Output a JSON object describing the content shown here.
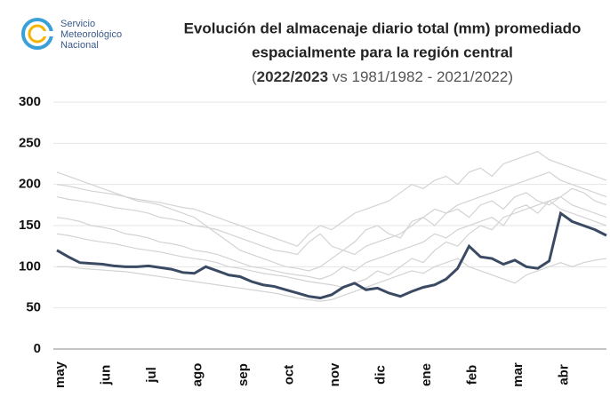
{
  "logo": {
    "lines": [
      "Servicio",
      "Meteorológico",
      "Nacional"
    ]
  },
  "chart_data": {
    "type": "line",
    "title": [
      "Evolución del almacenaje diario total (mm) promediado",
      "espacialmente para la región central"
    ],
    "subtitle": {
      "open": "(",
      "bold": "2022/2023",
      "rest": " vs 1981/1982 - 2021/2022)"
    },
    "categories": [
      "may",
      null,
      null,
      null,
      "jun",
      null,
      null,
      null,
      "jul",
      null,
      null,
      null,
      "ago",
      null,
      null,
      null,
      "sep",
      null,
      null,
      null,
      "oct",
      null,
      null,
      null,
      "nov",
      null,
      null,
      null,
      "dic",
      null,
      null,
      null,
      "ene",
      null,
      null,
      null,
      "feb",
      null,
      null,
      null,
      "mar",
      null,
      null,
      null,
      "abr",
      null,
      null,
      null,
      null
    ],
    "ylim": [
      0,
      300
    ],
    "yticks": [
      0,
      50,
      100,
      150,
      200,
      250,
      300
    ],
    "grid": true,
    "series": [
      {
        "color": "#d3d3d3",
        "values": [
          215,
          210,
          205,
          200,
          195,
          190,
          185,
          180,
          178,
          175,
          170,
          165,
          160,
          150,
          140,
          130,
          120,
          115,
          110,
          105,
          100,
          98,
          95,
          100,
          110,
          120,
          115,
          125,
          130,
          135,
          140,
          150,
          160,
          170,
          165,
          175,
          180,
          185,
          190,
          195,
          200,
          205,
          210,
          215,
          205,
          200,
          195,
          190,
          185
        ]
      },
      {
        "color": "#d3d3d3",
        "values": [
          185,
          182,
          180,
          178,
          175,
          172,
          170,
          168,
          165,
          160,
          158,
          155,
          150,
          148,
          145,
          140,
          135,
          130,
          125,
          120,
          118,
          115,
          130,
          140,
          125,
          120,
          130,
          145,
          150,
          140,
          135,
          155,
          160,
          150,
          165,
          170,
          160,
          175,
          180,
          170,
          185,
          190,
          180,
          175,
          185,
          195,
          190,
          180,
          175
        ]
      },
      {
        "color": "#d3d3d3",
        "values": [
          160,
          158,
          155,
          150,
          148,
          145,
          140,
          138,
          135,
          130,
          128,
          125,
          120,
          118,
          115,
          110,
          105,
          100,
          98,
          95,
          92,
          90,
          88,
          85,
          90,
          100,
          95,
          105,
          110,
          115,
          120,
          125,
          130,
          140,
          135,
          145,
          150,
          155,
          160,
          150,
          170,
          175,
          165,
          180,
          185,
          175,
          170,
          165,
          160
        ]
      },
      {
        "color": "#d3d3d3",
        "values": [
          140,
          138,
          135,
          132,
          130,
          128,
          125,
          122,
          120,
          118,
          115,
          112,
          110,
          108,
          105,
          100,
          98,
          95,
          92,
          90,
          88,
          85,
          82,
          80,
          78,
          75,
          80,
          85,
          95,
          90,
          100,
          110,
          105,
          120,
          130,
          125,
          140,
          150,
          145,
          160,
          165,
          170,
          175,
          180,
          170,
          165,
          160,
          155,
          150
        ]
      },
      {
        "color": "#d3d3d3",
        "values": [
          200,
          198,
          195,
          192,
          190,
          188,
          185,
          182,
          180,
          178,
          175,
          172,
          170,
          165,
          160,
          155,
          150,
          145,
          140,
          135,
          130,
          125,
          140,
          150,
          145,
          155,
          165,
          170,
          175,
          180,
          190,
          200,
          195,
          205,
          210,
          200,
          215,
          220,
          210,
          225,
          230,
          235,
          240,
          230,
          225,
          220,
          215,
          210,
          205
        ]
      },
      {
        "color": "#d3d3d3",
        "values": [
          100,
          100,
          98,
          97,
          96,
          95,
          94,
          92,
          90,
          88,
          86,
          84,
          82,
          80,
          78,
          76,
          74,
          72,
          70,
          68,
          65,
          62,
          60,
          58,
          60,
          65,
          70,
          75,
          80,
          85,
          90,
          95,
          92,
          100,
          105,
          110,
          100,
          95,
          90,
          85,
          80,
          90,
          95,
          100,
          105,
          100,
          105,
          108,
          110
        ]
      },
      {
        "name": "2022/2023",
        "color": "#3b4a63",
        "values": [
          120,
          112,
          105,
          104,
          103,
          101,
          100,
          100,
          101,
          99,
          97,
          93,
          92,
          100,
          95,
          90,
          88,
          82,
          78,
          76,
          72,
          68,
          64,
          62,
          66,
          75,
          80,
          72,
          74,
          68,
          64,
          70,
          75,
          78,
          85,
          98,
          125,
          112,
          110,
          103,
          108,
          100,
          98,
          107,
          165,
          155,
          150,
          145,
          138
        ]
      }
    ]
  }
}
